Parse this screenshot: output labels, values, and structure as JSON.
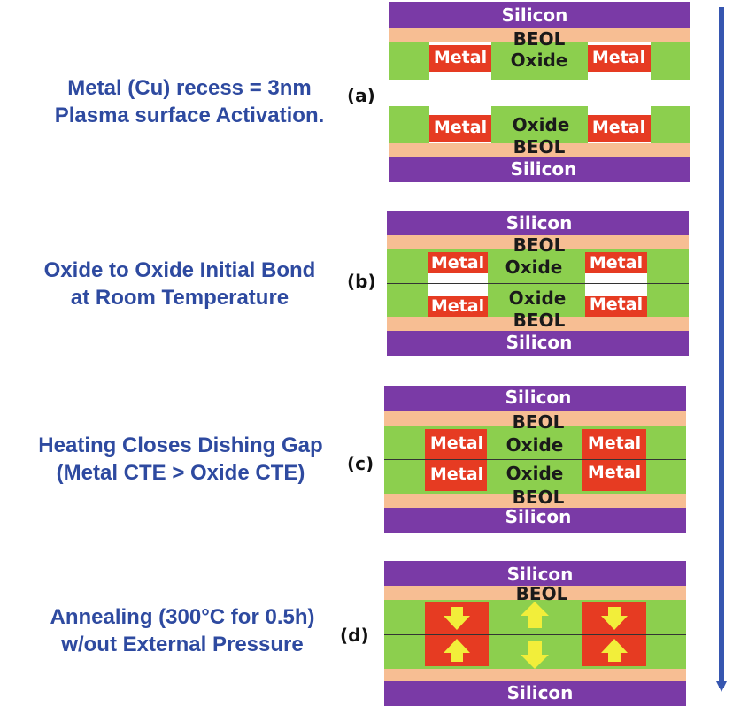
{
  "colors": {
    "silicon": "#7a3aa6",
    "beol": "#f7be93",
    "oxide": "#8ccf4e",
    "metal": "#e63b22",
    "arrow": "#f2ee3a",
    "caption": "#2e4aa0",
    "timeline": "#3656b0"
  },
  "labels": {
    "silicon": "Silicon",
    "beol": "BEOL",
    "oxide": "Oxide",
    "metal": "Metal"
  },
  "steps": [
    {
      "id": "a",
      "tag": "(a)",
      "caption_lines": [
        "Metal (Cu) recess = 3nm",
        "Plasma surface Activation."
      ]
    },
    {
      "id": "b",
      "tag": "(b)",
      "caption_lines": [
        "Oxide to Oxide Initial Bond",
        "at Room Temperature"
      ]
    },
    {
      "id": "c",
      "tag": "(c)",
      "caption_lines": [
        "Heating Closes Dishing Gap",
        "(Metal CTE > Oxide CTE)"
      ]
    },
    {
      "id": "d",
      "tag": "(d)",
      "caption_lines": [
        "Annealing (300°C for 0.5h)",
        "w/out External Pressure"
      ]
    }
  ]
}
